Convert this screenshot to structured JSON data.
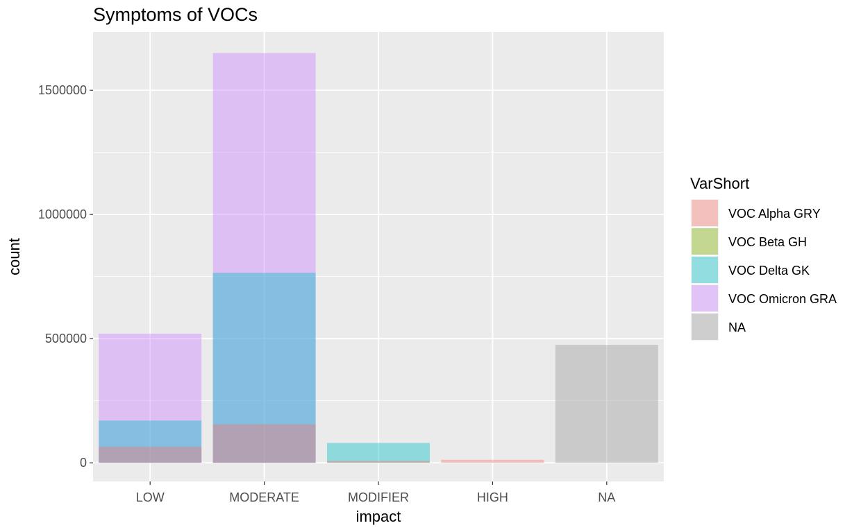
{
  "chart_data": {
    "type": "bar",
    "title": "Symptoms of VOCs",
    "xlabel": "impact",
    "ylabel": "count",
    "categories": [
      "LOW",
      "MODERATE",
      "MODIFIER",
      "HIGH",
      "NA"
    ],
    "ylim": [
      -75000,
      1735000
    ],
    "yticks": [
      0,
      500000,
      1000000,
      1500000
    ],
    "ytick_labels": [
      "0",
      "500000",
      "1000000",
      "1500000"
    ],
    "grid": true,
    "position": "identity (overlapping, semi-transparent)",
    "series": [
      {
        "name": "VOC Omicron GRA",
        "color": "#C77CFF",
        "values": [
          520000,
          1650000,
          0,
          0,
          0
        ]
      },
      {
        "name": "VOC Delta GK",
        "color": "#00BFC4",
        "values": [
          170000,
          765000,
          80000,
          0,
          0
        ]
      },
      {
        "name": "VOC Alpha GRY",
        "color": "#F8766D",
        "values": [
          65000,
          155000,
          8000,
          12000,
          0
        ]
      },
      {
        "name": "VOC Beta GH",
        "color": "#7CAE00",
        "values": [
          0,
          0,
          0,
          0,
          0
        ]
      },
      {
        "name": "NA",
        "color": "#999999",
        "values": [
          0,
          0,
          0,
          0,
          475000
        ]
      }
    ],
    "legend": {
      "title": "VarShort",
      "position": "right",
      "entries": [
        {
          "label": "VOC Alpha GRY",
          "color": "#F8766D"
        },
        {
          "label": "VOC Beta GH",
          "color": "#7CAE00"
        },
        {
          "label": "VOC Delta GK",
          "color": "#00BFC4"
        },
        {
          "label": "VOC Omicron GRA",
          "color": "#C77CFF"
        },
        {
          "label": "NA",
          "color": "#999999"
        }
      ]
    }
  }
}
